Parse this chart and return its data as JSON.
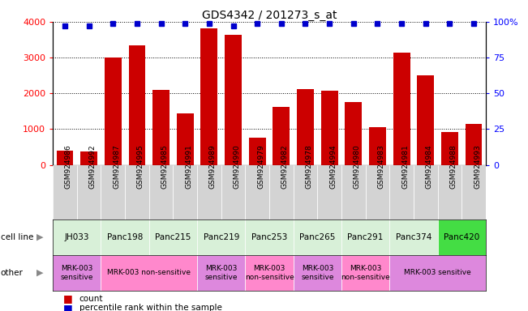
{
  "title": "GDS4342 / 201273_s_at",
  "samples": [
    "GSM924986",
    "GSM924992",
    "GSM924987",
    "GSM924995",
    "GSM924985",
    "GSM924991",
    "GSM924989",
    "GSM924990",
    "GSM924979",
    "GSM924982",
    "GSM924978",
    "GSM924994",
    "GSM924980",
    "GSM924983",
    "GSM924981",
    "GSM924984",
    "GSM924988",
    "GSM924993"
  ],
  "counts": [
    390,
    380,
    3000,
    3340,
    2090,
    1430,
    3820,
    3640,
    760,
    1630,
    2110,
    2080,
    1760,
    1060,
    3130,
    2510,
    920,
    1140
  ],
  "percentile_ranks": [
    97,
    97,
    99,
    99,
    99,
    99,
    99,
    97,
    99,
    99,
    99,
    99,
    99,
    99,
    99,
    99,
    99,
    99
  ],
  "cell_lines_ordered": [
    "JH033",
    "Panc198",
    "Panc215",
    "Panc219",
    "Panc253",
    "Panc265",
    "Panc291",
    "Panc374",
    "Panc420"
  ],
  "cell_lines": {
    "JH033": [
      0,
      1
    ],
    "Panc198": [
      2,
      3
    ],
    "Panc215": [
      4,
      5
    ],
    "Panc219": [
      6,
      7
    ],
    "Panc253": [
      8,
      9
    ],
    "Panc265": [
      10,
      11
    ],
    "Panc291": [
      12,
      13
    ],
    "Panc374": [
      14,
      15
    ],
    "Panc420": [
      16,
      17
    ]
  },
  "cell_line_colors": {
    "JH033": "#d8f0d8",
    "Panc198": "#d8f0d8",
    "Panc215": "#d8f0d8",
    "Panc219": "#d8f0d8",
    "Panc253": "#d8f0d8",
    "Panc265": "#d8f0d8",
    "Panc291": "#d8f0d8",
    "Panc374": "#d8f0d8",
    "Panc420": "#44dd44"
  },
  "other_labels": [
    {
      "text": "MRK-003\nsensitive",
      "start": 0,
      "end": 1,
      "color": "#dd88dd"
    },
    {
      "text": "MRK-003 non-sensitive",
      "start": 2,
      "end": 5,
      "color": "#ff88cc"
    },
    {
      "text": "MRK-003\nsensitive",
      "start": 6,
      "end": 7,
      "color": "#dd88dd"
    },
    {
      "text": "MRK-003\nnon-sensitive",
      "start": 8,
      "end": 9,
      "color": "#ff88cc"
    },
    {
      "text": "MRK-003\nsensitive",
      "start": 10,
      "end": 11,
      "color": "#dd88dd"
    },
    {
      "text": "MRK-003\nnon-sensitive",
      "start": 12,
      "end": 13,
      "color": "#ff88cc"
    },
    {
      "text": "MRK-003 sensitive",
      "start": 14,
      "end": 17,
      "color": "#dd88dd"
    }
  ],
  "ylim_left": [
    0,
    4000
  ],
  "ylim_right": [
    0,
    100
  ],
  "yticks_left": [
    0,
    1000,
    2000,
    3000,
    4000
  ],
  "yticks_right": [
    0,
    25,
    50,
    75,
    100
  ],
  "bar_color": "#cc0000",
  "dot_color": "#0000cc",
  "bg_color": "#ffffff",
  "xtick_bg": "#d3d3d3"
}
